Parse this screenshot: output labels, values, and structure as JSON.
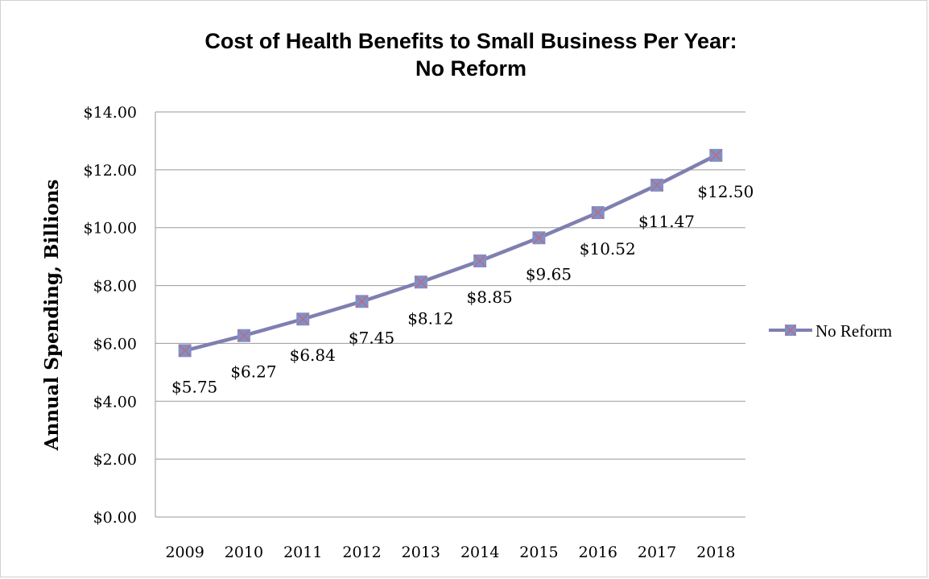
{
  "chart_data": {
    "type": "line",
    "title_lines": [
      "Cost of Health Benefits to Small Business Per Year:",
      "No Reform"
    ],
    "ylabel": "Annual Spending, Billions",
    "xlabel": "",
    "x": [
      "2009",
      "2010",
      "2011",
      "2012",
      "2013",
      "2014",
      "2015",
      "2016",
      "2017",
      "2018"
    ],
    "series": [
      {
        "name": "No Reform",
        "values": [
          5.75,
          6.27,
          6.84,
          7.45,
          8.12,
          8.85,
          9.65,
          10.52,
          11.47,
          12.5
        ],
        "labels": [
          "$5.75",
          "$6.27",
          "$6.84",
          "$7.45",
          "$8.12",
          "$8.85",
          "$9.65",
          "$10.52",
          "$11.47",
          "$12.50"
        ],
        "line_color": "#7f7fb0",
        "marker_color": "#7f90c8",
        "marker_cross_color": "#c06a7a"
      }
    ],
    "ylim": [
      0,
      14
    ],
    "yticks": [
      0,
      2,
      4,
      6,
      8,
      10,
      12,
      14
    ],
    "ytick_labels": [
      "$0.00",
      "$2.00",
      "$4.00",
      "$6.00",
      "$8.00",
      "$10.00",
      "$12.00",
      "$14.00"
    ],
    "grid": true,
    "legend_position": "right"
  }
}
